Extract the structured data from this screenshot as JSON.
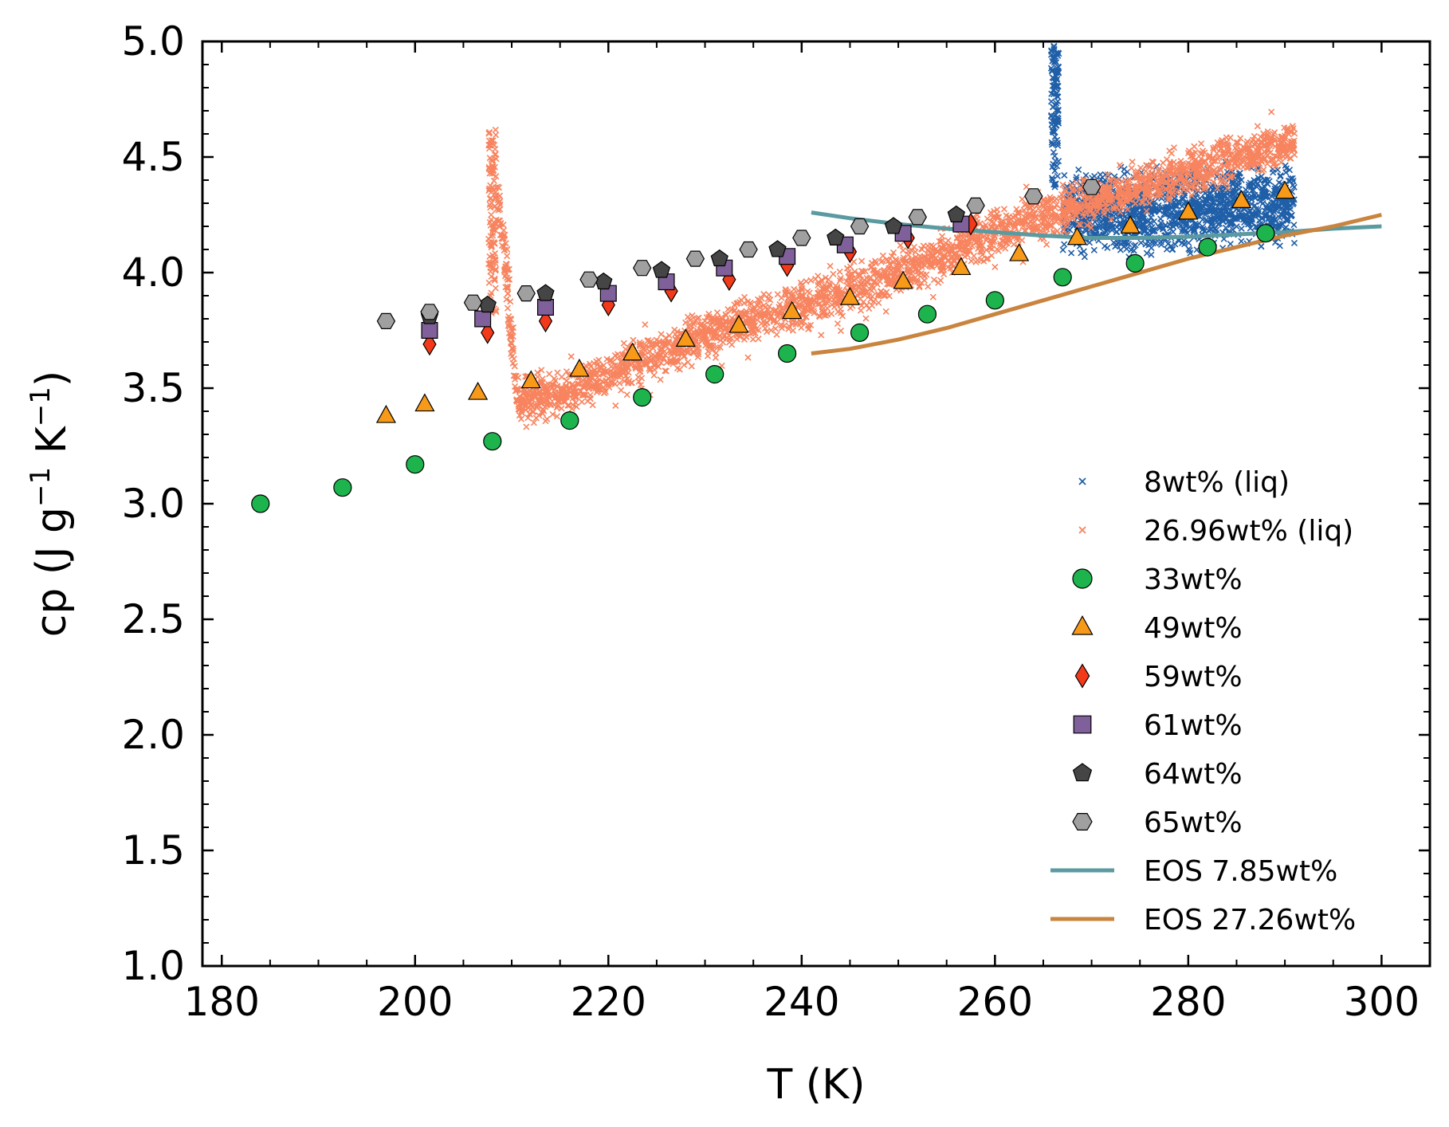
{
  "chart_data": {
    "type": "scatter",
    "title": "",
    "xlabel": "T (K)",
    "ylabel": {
      "prefix": "cp (J g",
      "exp1": "−1",
      "mid": " K",
      "exp2": "−1",
      "suffix": ")"
    },
    "xlim": [
      178,
      305
    ],
    "ylim": [
      1.0,
      5.0
    ],
    "xticks": [
      "180",
      "200",
      "220",
      "240",
      "260",
      "280",
      "300"
    ],
    "yticks": [
      "1.0",
      "1.5",
      "2.0",
      "2.5",
      "3.0",
      "3.5",
      "4.0",
      "4.5",
      "5.0"
    ],
    "grid": false,
    "legend_position": "lower right",
    "colors": {
      "liq8": "#1f5fa8",
      "liq27": "#f7845f",
      "w33": "#1db34d",
      "w49": "#f79a1a",
      "w59": "#f23a1a",
      "w61": "#80609a",
      "w64": "#454545",
      "w65": "#a0a0a0",
      "eos785": "#5b9aa0",
      "eos2726": "#c9843f"
    },
    "liquid_series": [
      {
        "name": "8wt% (liq)",
        "color_key": "liq8",
        "marker": "x",
        "spike": {
          "x": 266.2,
          "ymin": 4.35,
          "ymax": 4.98
        },
        "band": {
          "x": [
            267,
            291
          ],
          "y_lo": [
            4.05,
            4.1
          ],
          "y_hi": [
            4.45,
            4.5
          ]
        }
      },
      {
        "name": "26.96wt% (liq)",
        "color_key": "liq27",
        "marker": "x",
        "spike": {
          "x": 208,
          "ymin": 3.8,
          "ymax": 4.62
        },
        "drop": [
          [
            208.5,
            4.35
          ],
          [
            209.5,
            4.0
          ],
          [
            210,
            3.7
          ],
          [
            210.5,
            3.5
          ],
          [
            211,
            3.4
          ]
        ],
        "trend": [
          [
            211,
            3.45
          ],
          [
            215,
            3.48
          ],
          [
            220,
            3.55
          ],
          [
            225,
            3.65
          ],
          [
            230,
            3.73
          ],
          [
            235,
            3.8
          ],
          [
            240,
            3.86
          ],
          [
            245,
            3.93
          ],
          [
            250,
            4.0
          ],
          [
            255,
            4.08
          ],
          [
            260,
            4.17
          ],
          [
            265,
            4.25
          ],
          [
            270,
            4.3
          ],
          [
            275,
            4.37
          ],
          [
            280,
            4.43
          ],
          [
            285,
            4.49
          ],
          [
            291,
            4.58
          ]
        ],
        "spread": 0.09
      }
    ],
    "point_series": [
      {
        "name": "33wt%",
        "color_key": "w33",
        "marker": "circle",
        "x": [
          184,
          192.5,
          200,
          208,
          216,
          223.5,
          231,
          238.5,
          246,
          253,
          260,
          267,
          274.5,
          282,
          288
        ],
        "y": [
          3.0,
          3.07,
          3.17,
          3.27,
          3.36,
          3.46,
          3.56,
          3.65,
          3.74,
          3.82,
          3.88,
          3.98,
          4.04,
          4.11,
          4.17
        ]
      },
      {
        "name": "49wt%",
        "color_key": "w49",
        "marker": "triangle",
        "x": [
          197,
          201,
          206.5,
          212,
          217,
          222.5,
          228,
          233.5,
          239,
          245,
          250.5,
          256.5,
          262.5,
          268.5,
          274,
          280,
          285.5,
          290
        ],
        "y": [
          3.38,
          3.43,
          3.48,
          3.53,
          3.58,
          3.65,
          3.71,
          3.77,
          3.83,
          3.89,
          3.96,
          4.02,
          4.08,
          4.15,
          4.2,
          4.26,
          4.31,
          4.35
        ]
      },
      {
        "name": "59wt%",
        "color_key": "w59",
        "marker": "diamond",
        "x": [
          201.5,
          207.5,
          213.5,
          220,
          226.5,
          232.5,
          238.5,
          245,
          251,
          257.5
        ],
        "y": [
          3.69,
          3.74,
          3.79,
          3.86,
          3.92,
          3.97,
          4.03,
          4.09,
          4.15,
          4.21
        ]
      },
      {
        "name": "61wt%",
        "color_key": "w61",
        "marker": "square",
        "x": [
          201.5,
          207,
          213.5,
          220,
          226,
          232,
          238.5,
          244.5,
          250.5,
          256.5
        ],
        "y": [
          3.75,
          3.8,
          3.85,
          3.91,
          3.96,
          4.02,
          4.07,
          4.12,
          4.17,
          4.21
        ]
      },
      {
        "name": "64wt%",
        "color_key": "w64",
        "marker": "pentagon",
        "x": [
          201.5,
          207.5,
          213.5,
          219.5,
          225.5,
          231.5,
          237.5,
          243.5,
          249.5,
          256
        ],
        "y": [
          3.81,
          3.86,
          3.91,
          3.96,
          4.01,
          4.06,
          4.1,
          4.15,
          4.2,
          4.25
        ]
      },
      {
        "name": "65wt%",
        "color_key": "w65",
        "marker": "hexagon",
        "x": [
          197,
          201.5,
          206,
          211.5,
          218,
          223.5,
          229,
          234.5,
          240,
          246,
          252,
          258,
          264,
          270
        ],
        "y": [
          3.79,
          3.83,
          3.87,
          3.91,
          3.97,
          4.02,
          4.06,
          4.1,
          4.15,
          4.2,
          4.24,
          4.29,
          4.33,
          4.37
        ]
      }
    ],
    "line_series": [
      {
        "name": "EOS 7.85wt%",
        "color_key": "eos785",
        "x": [
          241,
          245,
          250,
          255,
          260,
          265,
          270,
          275,
          280,
          285,
          290,
          295,
          300
        ],
        "y": [
          4.26,
          4.235,
          4.21,
          4.19,
          4.175,
          4.16,
          4.15,
          4.15,
          4.155,
          4.165,
          4.175,
          4.19,
          4.2
        ]
      },
      {
        "name": "EOS 27.26wt%",
        "color_key": "eos2726",
        "x": [
          241,
          245,
          250,
          255,
          260,
          265,
          270,
          275,
          280,
          285,
          290,
          295,
          300
        ],
        "y": [
          3.65,
          3.67,
          3.71,
          3.76,
          3.82,
          3.88,
          3.94,
          4.0,
          4.06,
          4.11,
          4.16,
          4.2,
          4.25
        ]
      }
    ],
    "legend": [
      {
        "label": "8wt% (liq)",
        "kind": "x",
        "color_key": "liq8"
      },
      {
        "label": "26.96wt% (liq)",
        "kind": "x",
        "color_key": "liq27"
      },
      {
        "label": "33wt%",
        "kind": "circle",
        "color_key": "w33"
      },
      {
        "label": "49wt%",
        "kind": "triangle",
        "color_key": "w49"
      },
      {
        "label": "59wt%",
        "kind": "diamond",
        "color_key": "w59"
      },
      {
        "label": "61wt%",
        "kind": "square",
        "color_key": "w61"
      },
      {
        "label": "64wt%",
        "kind": "pentagon",
        "color_key": "w64"
      },
      {
        "label": "65wt%",
        "kind": "hexagon",
        "color_key": "w65"
      },
      {
        "label": "EOS 7.85wt%",
        "kind": "line",
        "color_key": "eos785"
      },
      {
        "label": "EOS 27.26wt%",
        "kind": "line",
        "color_key": "eos2726"
      }
    ]
  }
}
